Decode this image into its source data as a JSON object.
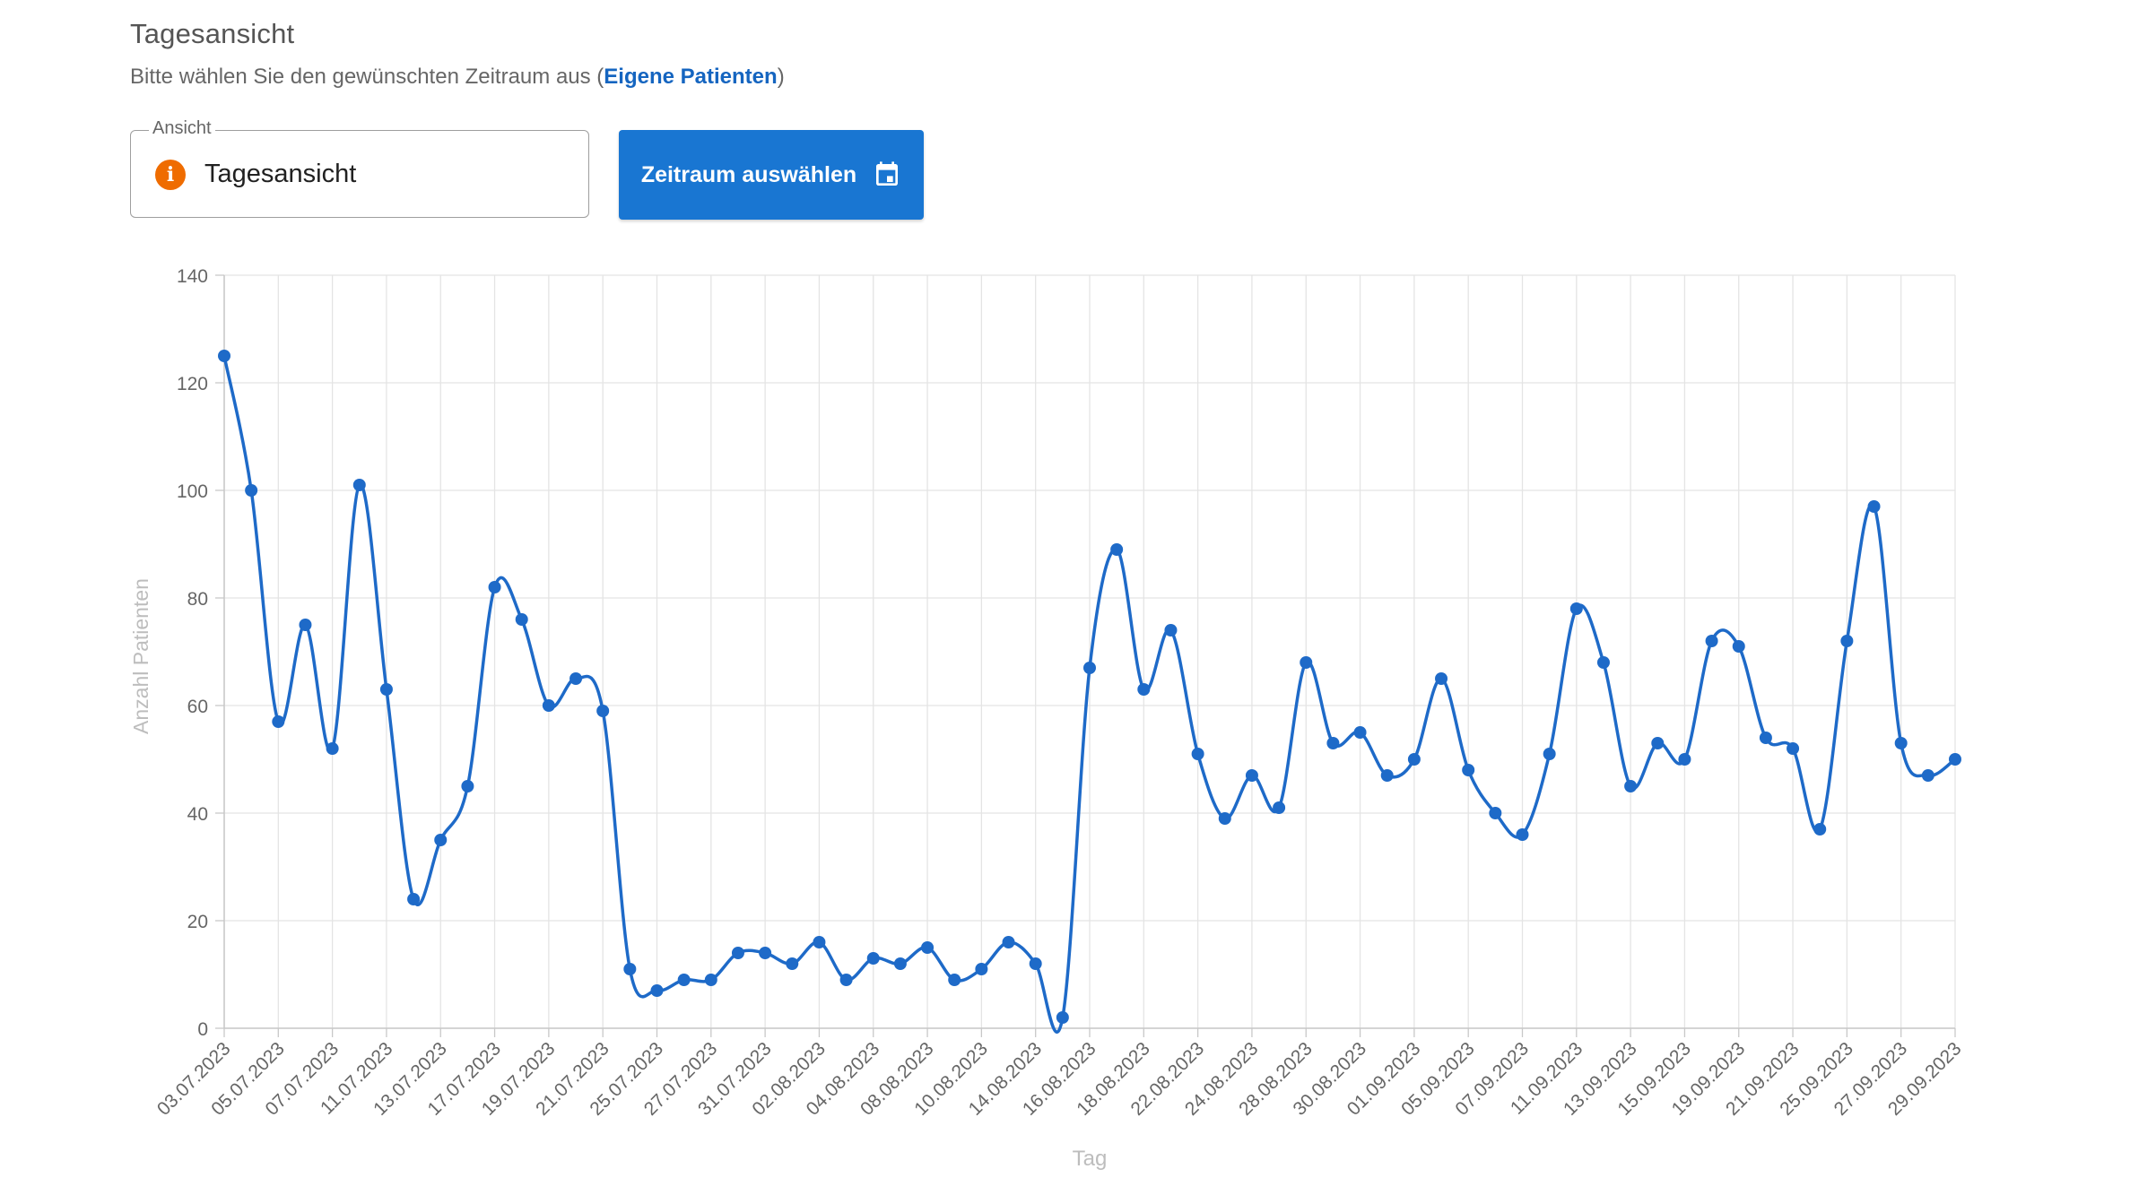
{
  "header": {
    "title": "Tagesansicht",
    "subtitle_prefix": "Bitte wählen Sie den gewünschten Zeitraum aus (",
    "subtitle_link": "Eigene Patienten",
    "subtitle_suffix": ")"
  },
  "view_select": {
    "legend": "Ansicht",
    "value": "Tagesansicht",
    "icon": "info-icon"
  },
  "range_button": {
    "label": "Zeitraum auswählen",
    "icon": "calendar-icon"
  },
  "colors": {
    "series": "#1e6ac8",
    "accent": "#1976d2",
    "info": "#ef6c00"
  },
  "chart_data": {
    "type": "line",
    "xlabel": "Tag",
    "ylabel": "Anzahl Patienten",
    "ylim": [
      0,
      140
    ],
    "yticks": [
      0,
      20,
      40,
      60,
      80,
      100,
      120,
      140
    ],
    "grid": true,
    "x_tick_labels": [
      "03.07.2023",
      "05.07.2023",
      "07.07.2023",
      "11.07.2023",
      "13.07.2023",
      "17.07.2023",
      "19.07.2023",
      "21.07.2023",
      "25.07.2023",
      "27.07.2023",
      "31.07.2023",
      "02.08.2023",
      "04.08.2023",
      "08.08.2023",
      "10.08.2023",
      "14.08.2023",
      "16.08.2023",
      "18.08.2023",
      "22.08.2023",
      "24.08.2023",
      "28.08.2023",
      "30.08.2023",
      "01.09.2023",
      "05.09.2023",
      "07.09.2023",
      "11.09.2023",
      "13.09.2023",
      "15.09.2023",
      "19.09.2023",
      "21.09.2023",
      "25.09.2023",
      "27.09.2023",
      "29.09.2023"
    ],
    "series": [
      {
        "values": [
          125,
          100,
          57,
          75,
          52,
          101,
          63,
          24,
          35,
          45,
          82,
          76,
          60,
          65,
          59,
          11,
          7,
          9,
          9,
          14,
          14,
          12,
          16,
          9,
          13,
          12,
          15,
          9,
          11,
          16,
          12,
          2,
          67,
          89,
          63,
          74,
          51,
          39,
          47,
          41,
          68,
          53,
          55,
          47,
          50,
          65,
          48,
          40,
          36,
          51,
          78,
          68,
          45,
          53,
          50,
          72,
          71,
          54,
          52,
          37,
          72,
          97,
          53,
          47,
          50
        ]
      }
    ]
  }
}
